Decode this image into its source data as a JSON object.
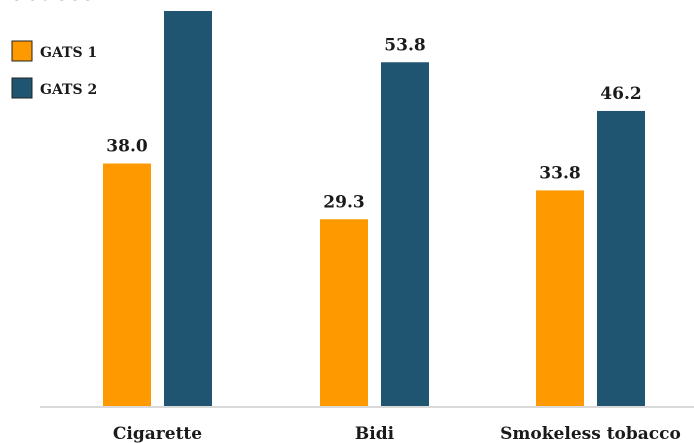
{
  "chart_data": {
    "type": "bar",
    "title": "tobacco",
    "categories": [
      "Cigarette",
      "Bidi",
      "Smokeless tobacco"
    ],
    "series": [
      {
        "name": "GATS 1",
        "values": [
          38.0,
          29.3,
          33.8
        ],
        "color": "#FF9900",
        "labels": [
          "38.0",
          "29.3",
          "33.8"
        ]
      },
      {
        "name": "GATS 2",
        "values": [
          61.8,
          53.8,
          46.2
        ],
        "color": "#1F5570",
        "labels": [
          "",
          "53.8",
          "46.2"
        ]
      }
    ],
    "ylim": [
      0,
      61.8
    ],
    "grid": false,
    "legend": "top-left"
  }
}
